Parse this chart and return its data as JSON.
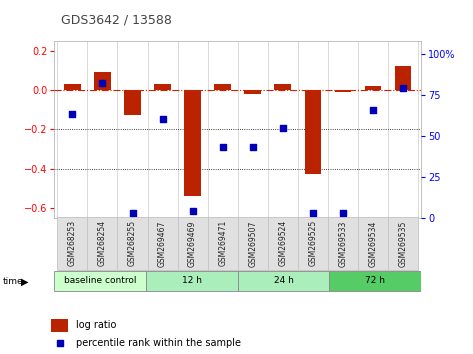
{
  "title": "GDS3642 / 13588",
  "samples": [
    "GSM268253",
    "GSM268254",
    "GSM268255",
    "GSM269467",
    "GSM269469",
    "GSM269471",
    "GSM269507",
    "GSM269524",
    "GSM269525",
    "GSM269533",
    "GSM269534",
    "GSM269535"
  ],
  "log_ratio": [
    0.03,
    0.09,
    -0.13,
    0.03,
    -0.54,
    0.03,
    -0.02,
    0.03,
    -0.43,
    -0.01,
    0.02,
    0.12
  ],
  "percentile_rank": [
    63,
    82,
    3,
    60,
    4,
    43,
    43,
    55,
    3,
    3,
    66,
    79
  ],
  "ylim_left": [
    -0.65,
    0.25
  ],
  "ylim_right": [
    0,
    108
  ],
  "bar_color": "#bb2200",
  "dot_color": "#0000bb",
  "background_color": "#ffffff",
  "zero_line_color": "#cc2200",
  "title_color": "#444444",
  "group_configs": [
    {
      "label": "baseline control",
      "start": 0,
      "end": 3,
      "color": "#ccffcc"
    },
    {
      "label": "12 h",
      "start": 3,
      "end": 6,
      "color": "#aaeebb"
    },
    {
      "label": "24 h",
      "start": 6,
      "end": 9,
      "color": "#aaeebb"
    },
    {
      "label": "72 h",
      "start": 9,
      "end": 12,
      "color": "#55cc66"
    }
  ]
}
